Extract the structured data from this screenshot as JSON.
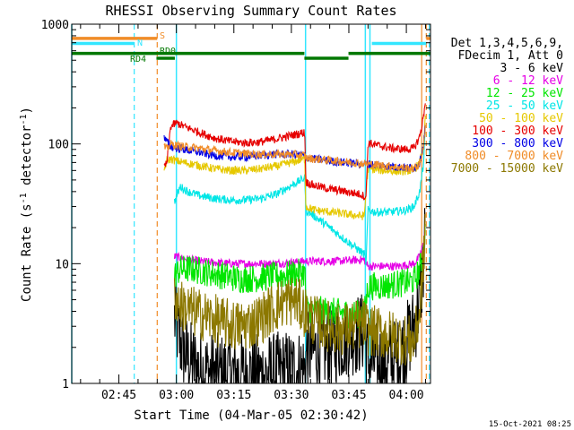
{
  "chart_data": {
    "type": "line",
    "title": "RHESSI Observing Summary Count Rates",
    "xlabel": "Start Time (04-Mar-05 02:30:42)",
    "ylabel_main": "Count Rate (s",
    "ylabel_sup1": "-1",
    "ylabel_mid": " detector",
    "ylabel_sup2": "-1",
    "ylabel_end": ")",
    "y_scale": "log",
    "ylim": [
      1,
      1000
    ],
    "xlim_minutes": [
      2.7,
      96.3
    ],
    "x_tick_minutes": [
      15,
      30,
      45,
      60,
      75,
      90
    ],
    "x_ticks": [
      "02:45",
      "03:00",
      "03:15",
      "03:30",
      "03:45",
      "04:00"
    ],
    "y_ticks": [
      {
        "value": 1,
        "label": "1"
      },
      {
        "value": 10,
        "label": "10"
      },
      {
        "value": 100,
        "label": "100"
      },
      {
        "value": 1000,
        "label": "1000"
      }
    ],
    "legend_header": [
      "Det 1,3,4,5,6,9,",
      "FDecim 1, Att 0"
    ],
    "legend_placement": "right",
    "timestamp": "15-Oct-2021 08:25",
    "series": [
      {
        "name": "3 - 6 keV",
        "color": "#000000",
        "x": [
          29.5,
          31,
          33,
          36,
          40,
          45,
          50,
          55,
          60,
          63.5,
          64,
          68,
          70,
          72,
          75,
          78,
          79,
          80,
          81,
          84,
          88,
          92,
          93.5,
          94.5,
          95
        ],
        "y": [
          3.5,
          2.2,
          1.6,
          1.3,
          1.2,
          1.2,
          1.2,
          1.2,
          1.3,
          1.3,
          1.8,
          1.9,
          2.0,
          2.2,
          2.5,
          2.6,
          2.7,
          1.5,
          1.5,
          1.5,
          1.6,
          3.0,
          5,
          10,
          22
        ]
      },
      {
        "name": "6 - 12 keV",
        "color": "#e600e6",
        "x": [
          29.5,
          32,
          36,
          40,
          45,
          50,
          55,
          60,
          63.5,
          64,
          68,
          72,
          76,
          79,
          80,
          81,
          84,
          88,
          92,
          93.5,
          94.5,
          95
        ],
        "y": [
          11.5,
          11.0,
          10.5,
          10.2,
          10.0,
          10.0,
          10.0,
          10.2,
          10.5,
          10.5,
          10.5,
          10.5,
          10.7,
          10.8,
          9.5,
          9.5,
          9.5,
          9.5,
          10.0,
          11.5,
          15,
          22
        ]
      },
      {
        "name": "12 - 25 keV",
        "color": "#00e600",
        "x": [
          29.5,
          31,
          34,
          38,
          42,
          46,
          50,
          55,
          60,
          63.5,
          64,
          70,
          76,
          79,
          80,
          84,
          88,
          92,
          93.5,
          94.5,
          95
        ],
        "y": [
          8.0,
          9.0,
          9.0,
          8.5,
          8.0,
          7.5,
          7.5,
          7.8,
          8.2,
          8.5,
          4.2,
          4.0,
          3.8,
          3.8,
          6.5,
          6.5,
          6.8,
          7.2,
          9.0,
          13,
          20
        ]
      },
      {
        "name": "25 - 50 keV",
        "color": "#00e6e6",
        "x": [
          29.5,
          30,
          31,
          33,
          36,
          40,
          44,
          48,
          52,
          56,
          60,
          63.5,
          63.8,
          66,
          70,
          75,
          79,
          79.5,
          80,
          82,
          86,
          90,
          92,
          93.5,
          94.5,
          95
        ],
        "y": [
          33,
          36,
          44,
          40,
          37,
          35,
          34,
          34,
          35,
          38,
          45,
          52,
          28,
          25,
          20,
          15,
          12,
          10,
          28,
          27,
          27,
          28,
          30,
          40,
          70,
          140
        ]
      },
      {
        "name": "50 - 100 keV",
        "color": "#e6c800",
        "x": [
          26.8,
          27.5,
          28.5,
          30,
          32,
          36,
          40,
          44,
          48,
          52,
          56,
          60,
          63.5,
          63.8,
          66,
          70,
          74,
          78,
          79,
          80,
          84,
          88,
          92,
          93.5,
          94.5,
          95
        ],
        "y": [
          60,
          72,
          75,
          72,
          70,
          66,
          62,
          60,
          60,
          62,
          65,
          70,
          75,
          30,
          28,
          27,
          26,
          25,
          25,
          62,
          60,
          59,
          60,
          70,
          100,
          170
        ]
      },
      {
        "name": "100 - 300 keV",
        "color": "#e60000",
        "x": [
          26.8,
          27.5,
          28.5,
          30,
          32,
          36,
          40,
          44,
          48,
          52,
          56,
          60,
          63.5,
          63.8,
          66,
          70,
          74,
          78,
          79.5,
          80,
          82,
          86,
          90,
          92,
          93.5,
          94.5,
          95
        ],
        "y": [
          65,
          68,
          140,
          150,
          140,
          125,
          112,
          105,
          102,
          104,
          110,
          118,
          125,
          48,
          45,
          42,
          40,
          38,
          36,
          102,
          98,
          92,
          90,
          92,
          115,
          170,
          240
        ]
      },
      {
        "name": "300 - 800 keV",
        "color": "#0000e6",
        "x": [
          26.8,
          27.5,
          28.5,
          30,
          32,
          36,
          40,
          44,
          48,
          52,
          56,
          60,
          63.5,
          63.8,
          66,
          70,
          74,
          78,
          80,
          84,
          88,
          92,
          93.5,
          94.5,
          95
        ],
        "y": [
          112,
          105,
          95,
          92,
          90,
          85,
          80,
          78,
          78,
          80,
          82,
          82,
          80,
          78,
          75,
          72,
          70,
          68,
          68,
          66,
          64,
          63,
          70,
          100,
          150
        ]
      },
      {
        "name": "800 - 7000 keV",
        "color": "#f08c28",
        "x": [
          26.8,
          27.5,
          28.5,
          30,
          32,
          36,
          40,
          44,
          48,
          52,
          56,
          60,
          63.5,
          64,
          68,
          72,
          76,
          80,
          84,
          88,
          92,
          93.5,
          94.5,
          95
        ],
        "y": [
          95,
          90,
          100,
          97,
          95,
          92,
          88,
          85,
          83,
          82,
          82,
          82,
          80,
          76,
          74,
          72,
          70,
          68,
          66,
          64,
          62,
          68,
          95,
          140
        ]
      },
      {
        "name": "7000 - 15000 keV",
        "color": "#8c7800",
        "x": [
          29.5,
          31,
          34,
          38,
          42,
          46,
          50,
          52,
          55,
          58,
          61,
          64,
          67,
          70,
          73,
          76,
          79,
          80,
          84,
          88,
          92,
          93.5,
          94.5,
          95
        ],
        "y": [
          5.5,
          4.5,
          4.0,
          3.6,
          3.2,
          3.0,
          3.2,
          3.5,
          4.2,
          4.8,
          5.0,
          3.8,
          3.2,
          3.0,
          2.8,
          3.0,
          3.2,
          2.8,
          2.6,
          2.4,
          2.2,
          4,
          10,
          25
        ]
      }
    ],
    "annotations": {
      "rd4_label": "RD4",
      "rd0_label": "RD0",
      "s_label": "S",
      "n_label": "N",
      "rd_segments": [
        {
          "start": 2.7,
          "end": 63.4,
          "level": 570
        },
        {
          "start": 63.4,
          "end": 74.9,
          "level": 520
        },
        {
          "start": 74.9,
          "end": 96.3,
          "level": 570
        },
        {
          "start": 24.8,
          "end": 29.6,
          "level": 520
        }
      ],
      "s_segments": [
        {
          "start": 2.7,
          "end": 25.0,
          "level": 760
        },
        {
          "start": 95.2,
          "end": 96.3,
          "level": 760
        }
      ],
      "n_segments": [
        {
          "start": 2.7,
          "end": 19.0,
          "level": 690
        },
        {
          "start": 81.0,
          "end": 95.2,
          "level": 690
        }
      ],
      "cyan_solid_lines": [
        2.7,
        30.0,
        63.7,
        79.3,
        80.5
      ],
      "cyan_dashed_lines": [
        19.0,
        96.0
      ],
      "orange_dashed_lines": [
        25.0,
        95.2
      ],
      "orange_solid_lines": [
        94.0
      ]
    }
  }
}
